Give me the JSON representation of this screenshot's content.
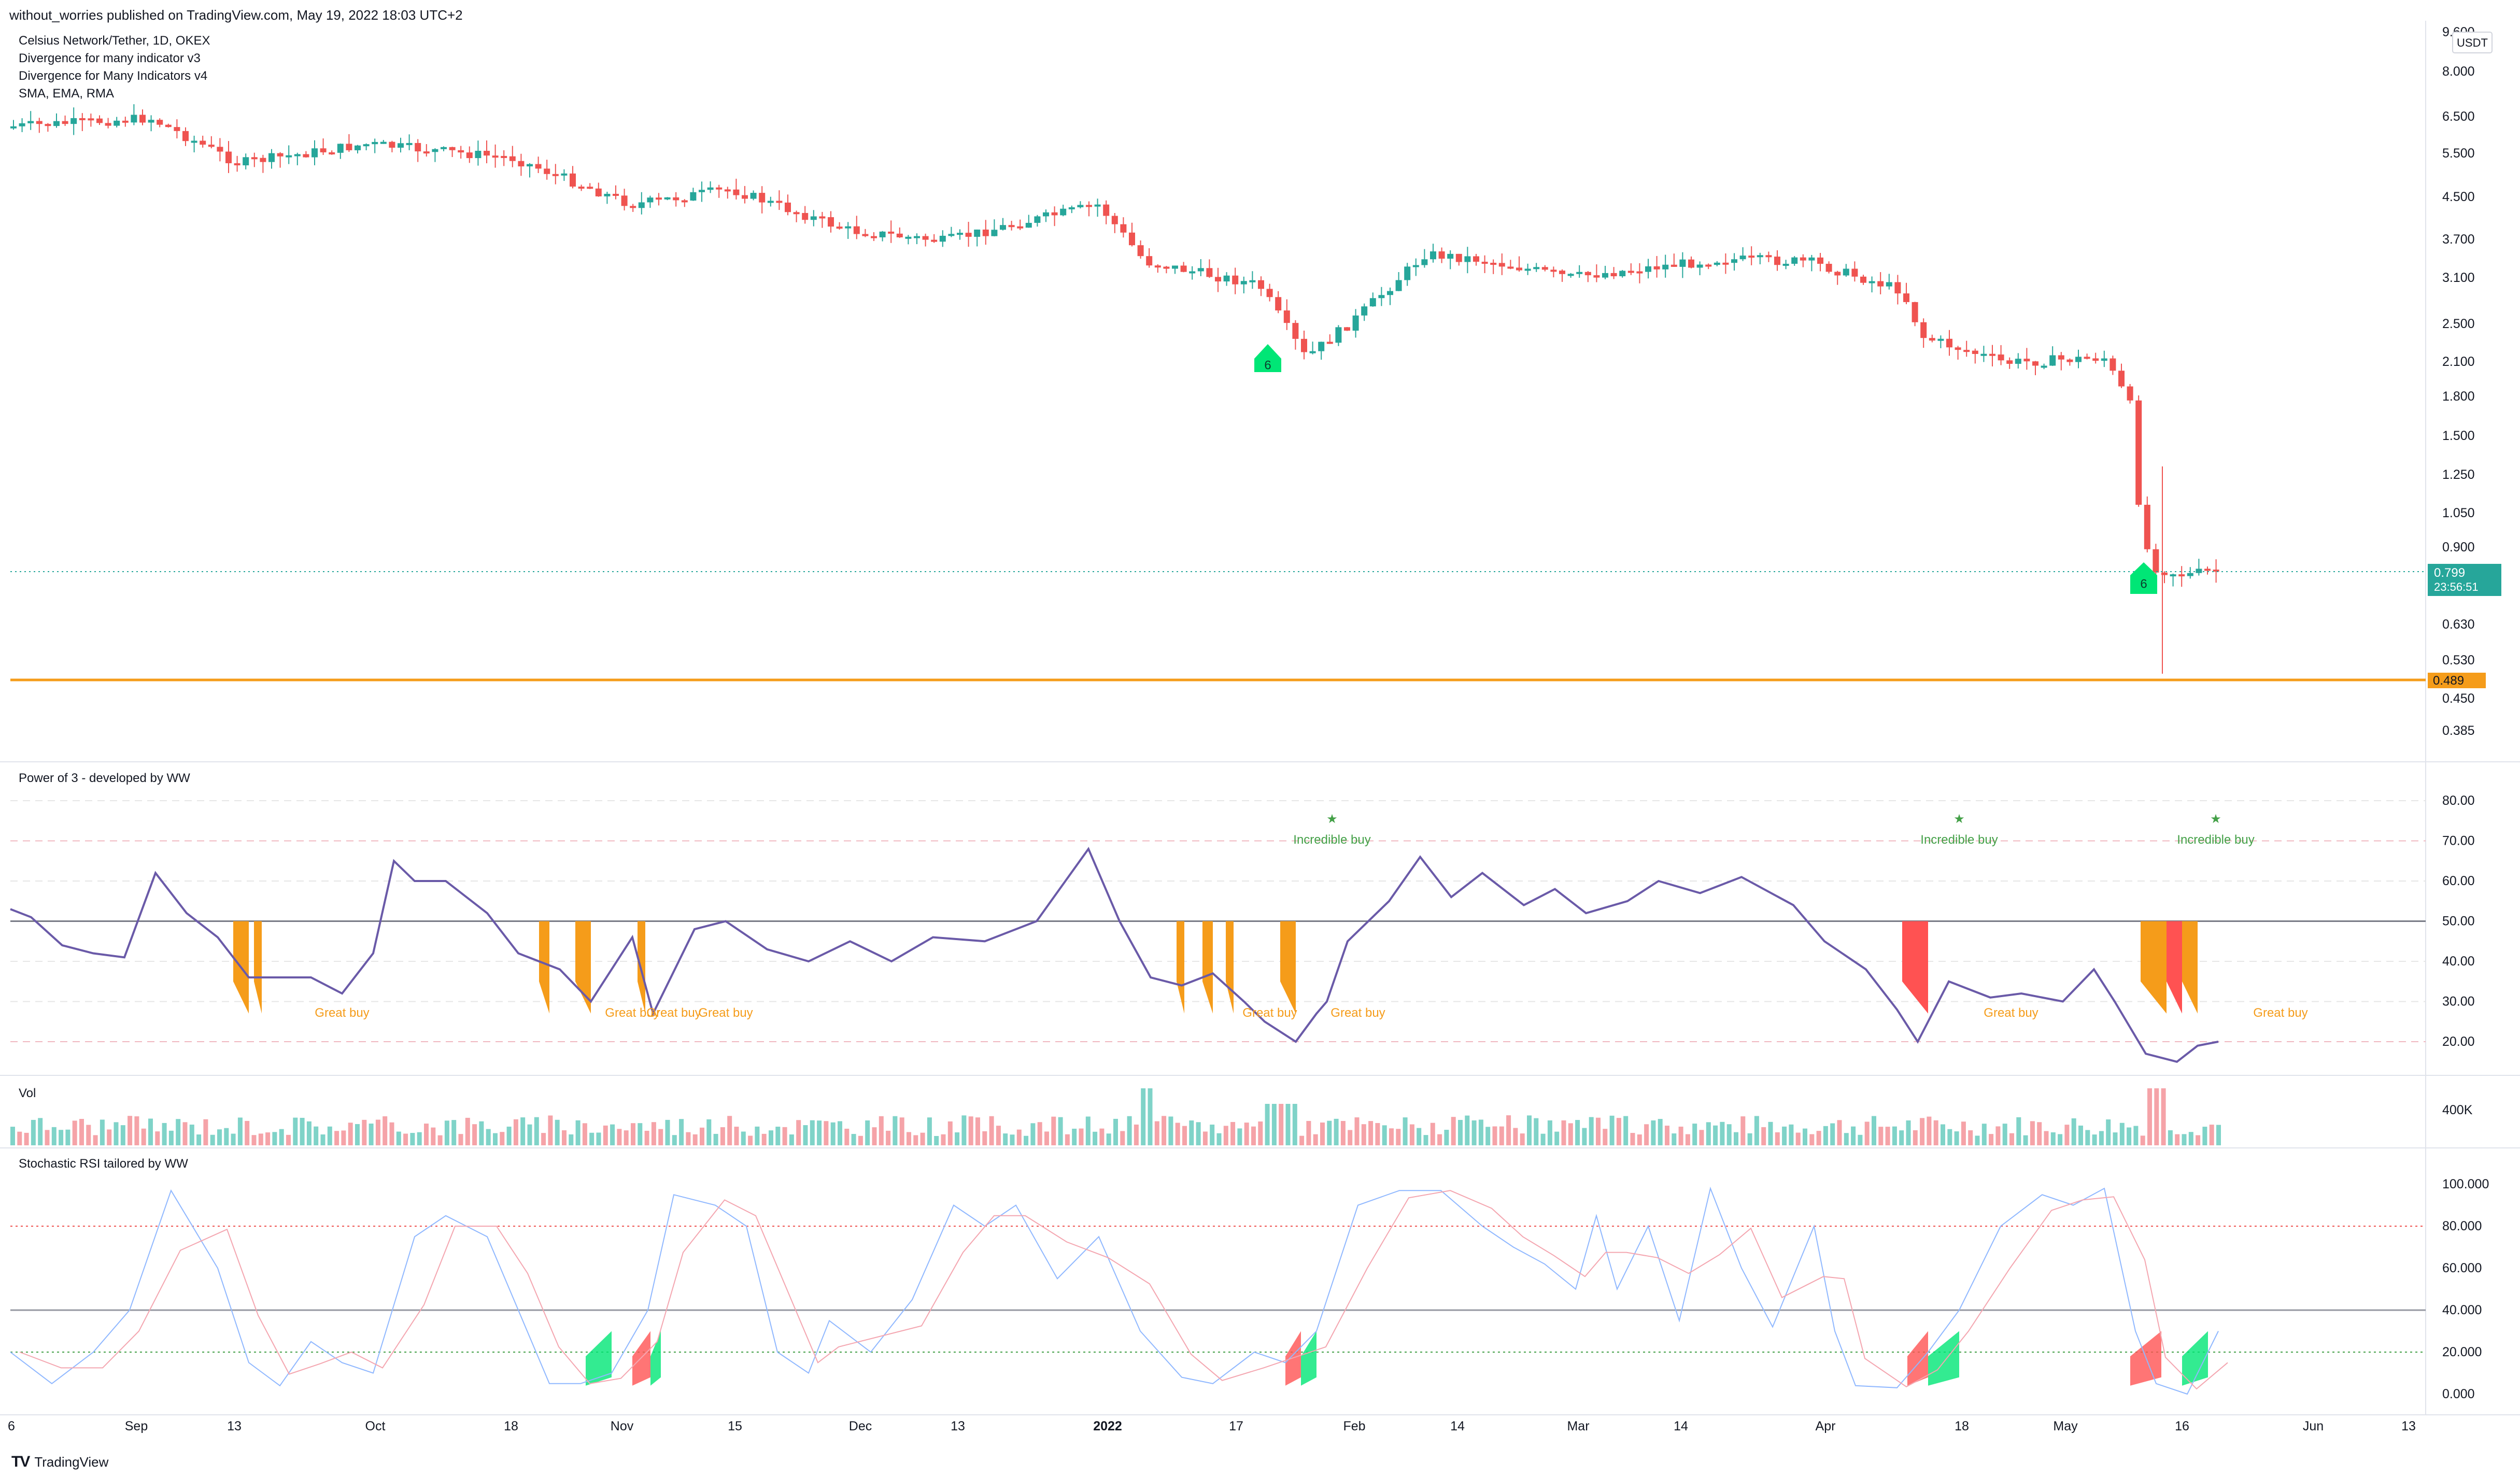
{
  "header": {
    "published": "without_worries published on TradingView.com, May 19, 2022 18:03 UTC+2"
  },
  "main_pane": {
    "legend": [
      "Celsius Network/Tether, 1D, OKEX",
      "Divergence for many indicator v3",
      "Divergence for Many Indicators v4",
      "SMA, EMA, RMA"
    ],
    "currency_button": "USDT",
    "price_axis": [
      "9.600",
      "8.000",
      "6.500",
      "5.500",
      "4.500",
      "3.700",
      "3.100",
      "2.500",
      "2.100",
      "1.800",
      "1.500",
      "1.250",
      "1.050",
      "0.900",
      "0.630",
      "0.530",
      "0.450",
      "0.385"
    ],
    "last_price": "0.799",
    "countdown": "23:56:51",
    "support_price": "0.489",
    "markers": [
      "6",
      "6"
    ],
    "colors": {
      "up": "#26a69a",
      "down": "#ef5350",
      "support": "#f59c1a",
      "marker": "#00e676"
    }
  },
  "power_pane": {
    "title": "Power of 3 - developed by WW",
    "axis": [
      "80.00",
      "70.00",
      "60.00",
      "50.00",
      "40.00",
      "30.00",
      "20.00"
    ],
    "annotations": [
      {
        "text": "Incredible buy",
        "star": "★"
      },
      {
        "text": "Incredible buy",
        "star": "★"
      },
      {
        "text": "Incredible buy",
        "star": "★"
      }
    ],
    "great_buy": [
      "Great buy",
      "Great buy",
      "Great buy",
      "Great buy",
      "Great buy",
      "Great buy",
      "Great buy",
      "Great buy"
    ]
  },
  "vol_pane": {
    "title": "Vol",
    "axis": [
      "400K"
    ]
  },
  "stoch_pane": {
    "title": "Stochastic RSI tailored by WW",
    "axis": [
      "100.000",
      "80.000",
      "60.000",
      "40.000",
      "20.000",
      "0.000"
    ]
  },
  "time_axis": [
    "6",
    "Sep",
    "13",
    "Oct",
    "18",
    "Nov",
    "15",
    "Dec",
    "13",
    "2022",
    "17",
    "Feb",
    "14",
    "Mar",
    "14",
    "Apr",
    "18",
    "May",
    "16",
    "Jun",
    "13"
  ],
  "footer": {
    "logo_mark": "TV",
    "logo_text": "TradingView"
  }
}
